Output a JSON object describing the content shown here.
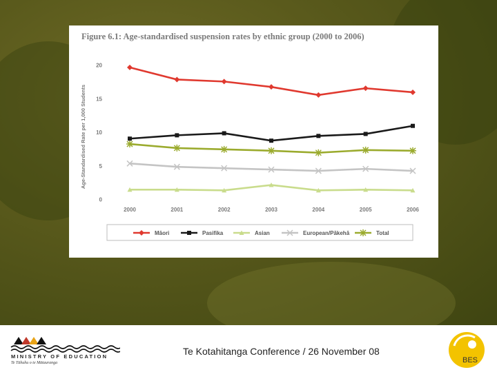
{
  "footer": {
    "organisation": "MINISTRY OF EDUCATION",
    "organisation_maori": "Te Tāhuhu o te Mātauranga",
    "conference": "Te Kotahitanga Conference / 26 November 08",
    "bes_label": "BES"
  },
  "colors": {
    "maori": "#e0392f",
    "pasifika": "#1a1a1a",
    "asian": "#c9dc8c",
    "european": "#c4c4c4",
    "total": "#9bab2e",
    "axis_text": "#7a7a7a"
  },
  "chart_data": {
    "type": "line",
    "title": "Figure 6.1: Age-standardised suspension rates by ethnic group (2000 to 2006)",
    "xlabel": "",
    "ylabel": "Age-Standardised Rate per 1,000 Students",
    "x": [
      "2000",
      "2001",
      "2002",
      "2003",
      "2004",
      "2005",
      "2006"
    ],
    "ylim": [
      0,
      20
    ],
    "yticks": [
      0,
      5,
      10,
      15,
      20
    ],
    "grid": false,
    "legend_position": "bottom",
    "series": [
      {
        "name": "Māori",
        "key": "maori",
        "marker": "diamond",
        "values": [
          19.6,
          17.8,
          17.5,
          16.7,
          15.5,
          16.5,
          15.9
        ]
      },
      {
        "name": "Pasifika",
        "key": "pasifika",
        "marker": "square",
        "values": [
          9.0,
          9.5,
          9.8,
          8.7,
          9.4,
          9.7,
          10.9
        ]
      },
      {
        "name": "Asian",
        "key": "asian",
        "marker": "triangle",
        "values": [
          1.4,
          1.4,
          1.3,
          2.1,
          1.3,
          1.4,
          1.3
        ]
      },
      {
        "name": "European/Pākehā",
        "key": "european",
        "marker": "x",
        "values": [
          5.3,
          4.8,
          4.6,
          4.4,
          4.2,
          4.5,
          4.2
        ]
      },
      {
        "name": "Total",
        "key": "total",
        "marker": "star",
        "values": [
          8.2,
          7.6,
          7.4,
          7.2,
          6.9,
          7.3,
          7.2
        ]
      }
    ]
  }
}
